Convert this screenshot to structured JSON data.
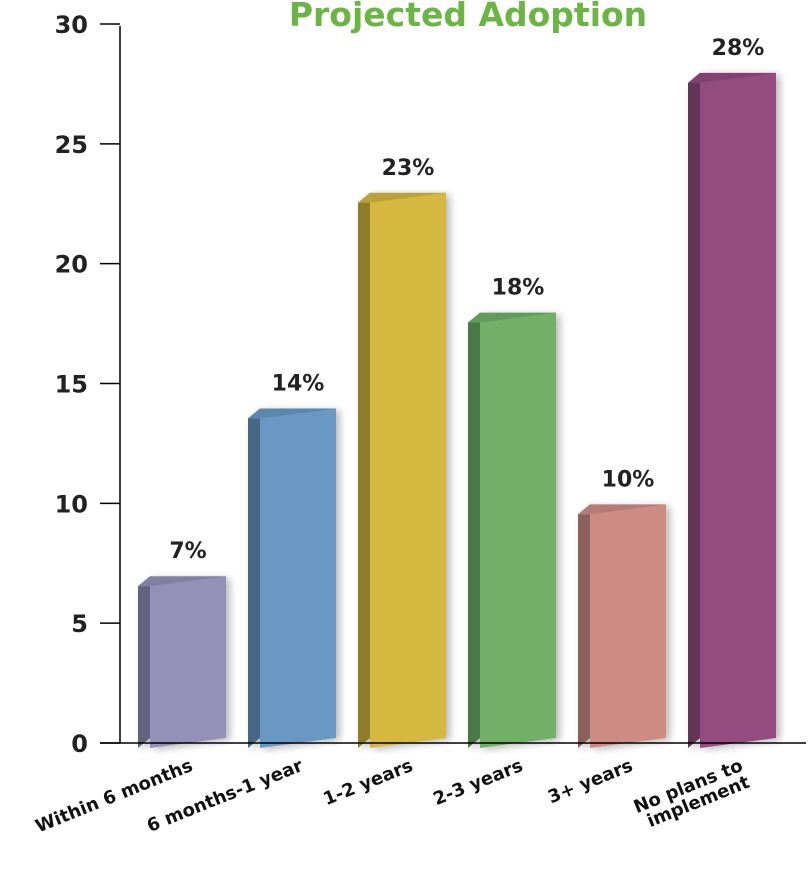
{
  "chart_data": {
    "type": "bar",
    "title": "Projected Adoption",
    "categories": [
      "Within 6 months",
      "6 months-1 year",
      "1-2 years",
      "2-3 years",
      "3+ years",
      "No plans to implement"
    ],
    "category_lines": [
      [
        "Within 6 months"
      ],
      [
        "6 months-1 year"
      ],
      [
        "1-2 years"
      ],
      [
        "2-3 years"
      ],
      [
        "3+ years"
      ],
      [
        "No plans to",
        "implement"
      ]
    ],
    "values": [
      7,
      14,
      23,
      18,
      10,
      28
    ],
    "value_labels": [
      "7%",
      "14%",
      "23%",
      "18%",
      "10%",
      "28%"
    ],
    "yticks": [
      "0",
      "5",
      "10",
      "15",
      "20",
      "25",
      "30"
    ],
    "ylim": [
      0,
      30
    ],
    "xlabel": "",
    "ylabel": "",
    "grid": false,
    "colors": [
      "#9590b8",
      "#6998c4",
      "#d4b840",
      "#72b068",
      "#cc8c84",
      "#934c80"
    ],
    "title_color": "#6bb545"
  }
}
